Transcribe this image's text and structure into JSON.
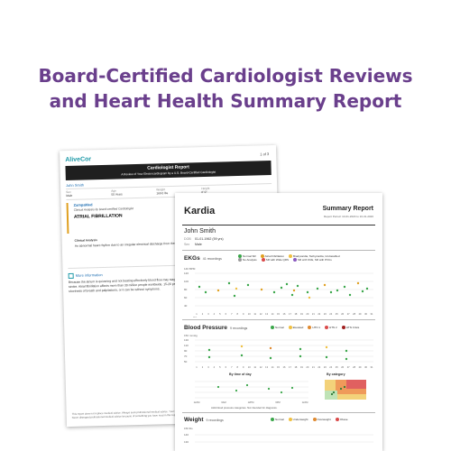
{
  "headline": {
    "line1": "Board-Certified Cardiologist Reviews",
    "line2": "and Heart Health Summary Report",
    "color": "#6a3f8c"
  },
  "cardio_report": {
    "brand": "AliveCor",
    "page": "1 of 3",
    "title": "Cardiologist Report",
    "subtitle": "A Review of Your Electrocardiogram by a U.S. Board-Certified Cardiologist",
    "patient_name": "John Smith",
    "info": [
      {
        "label": "Sex",
        "value": "Male"
      },
      {
        "label": "Age",
        "value": "50 Years"
      },
      {
        "label": "Weight",
        "value": "169.0 lbs"
      },
      {
        "label": "Height",
        "value": "6' 0\""
      }
    ],
    "analysis_logo": "ZampaMed",
    "analysis_sub": "Clinical Analysis by board-certified Cardiologist",
    "diagnosis": "ATRIAL FIBRILLATION",
    "clinical_label": "Clinical Analysis",
    "clinical_text": "An abnormal heart rhythm due to an irregular electrical discharge from the atria of the heart.",
    "more_label": "More information",
    "more_text": "Because the atrium is quivering and not beating effectively blood flow may stagnate and predispose to the formation of clots which in turn can lead to stroke. Atrial fibrillation affects more than 30 million people worldwide. 15-20 percent of people who have strokes have AFib. Symptoms include shortness of breath and palpitations, or it can be without symptoms.",
    "footer": "This report does not replace medical advice. Always seek professional medical advice. Your heart health must be defined in a clinical setting by a physician and not by this report. Never disregard professional medical advice because of something you have read in this report."
  },
  "summary_report": {
    "logo": "Kardia",
    "title": "Summary Report",
    "period": "Report Period: 10-01-2020 to 10-31-2020",
    "patient_name": "John Smith",
    "fields": [
      {
        "label": "DOB",
        "value": "01-01-1962 (59 yrs)"
      },
      {
        "label": "Sex",
        "value": "Male"
      }
    ],
    "ekg": {
      "name": "EKGs",
      "count": "41 recordings",
      "legend": [
        {
          "label": "Normal SR",
          "color": "#3aa64a"
        },
        {
          "label": "Atrial Fibrillation",
          "color": "#e0a020"
        },
        {
          "label": "Bradycardia, Tachycardia, Unclassified",
          "color": "#f0c040"
        },
        {
          "label": "No Analysis",
          "color": "#9a9a9a"
        },
        {
          "label": "SR with Wide QRS",
          "color": "#d94a4a"
        },
        {
          "label": "SR with SVE, SR with PVCs",
          "color": "#8a5ac0"
        }
      ],
      "y_unit": "140 BPM",
      "y_ticks": [
        "120",
        "100",
        "80",
        "60",
        "40"
      ],
      "x_ticks": [
        "1",
        "2",
        "3",
        "4",
        "5",
        "6",
        "7",
        "8",
        "9",
        "10",
        "11",
        "12",
        "13",
        "14",
        "15",
        "16",
        "17",
        "18",
        "19",
        "20",
        "21",
        "22",
        "23",
        "24",
        "25",
        "26",
        "27",
        "28",
        "29",
        "30",
        "31"
      ],
      "x_unit": "Oct"
    },
    "bp": {
      "name": "Blood Pressure",
      "count": "9 recordings",
      "legend": [
        {
          "label": "Normal",
          "color": "#3aa64a"
        },
        {
          "label": "Elevated",
          "color": "#f0c040"
        },
        {
          "label": "HTN 1",
          "color": "#e08a30"
        },
        {
          "label": "HTN 2",
          "color": "#d94a4a"
        },
        {
          "label": "HTN Crisis",
          "color": "#a02020"
        }
      ],
      "y_unit": "150 mmHg",
      "y_ticks": [
        "130",
        "110",
        "90",
        "70",
        "50"
      ],
      "by_time_label": "By time of day",
      "by_category_label": "By category",
      "time_ticks": [
        "12AM",
        "6AM",
        "12PM",
        "6PM",
        "12AM"
      ],
      "note": "AHA blood pressure categories. Not intended for diagnosis."
    },
    "weight": {
      "name": "Weight",
      "count": "9 recordings",
      "legend": [
        {
          "label": "Normal",
          "color": "#3aa64a"
        },
        {
          "label": "Underweight",
          "color": "#f0c040"
        },
        {
          "label": "Overweight",
          "color": "#e08a30"
        },
        {
          "label": "Obese",
          "color": "#d94a4a"
        }
      ],
      "y_unit": "150 lbs",
      "y_ticks": [
        "140",
        "130"
      ]
    }
  }
}
